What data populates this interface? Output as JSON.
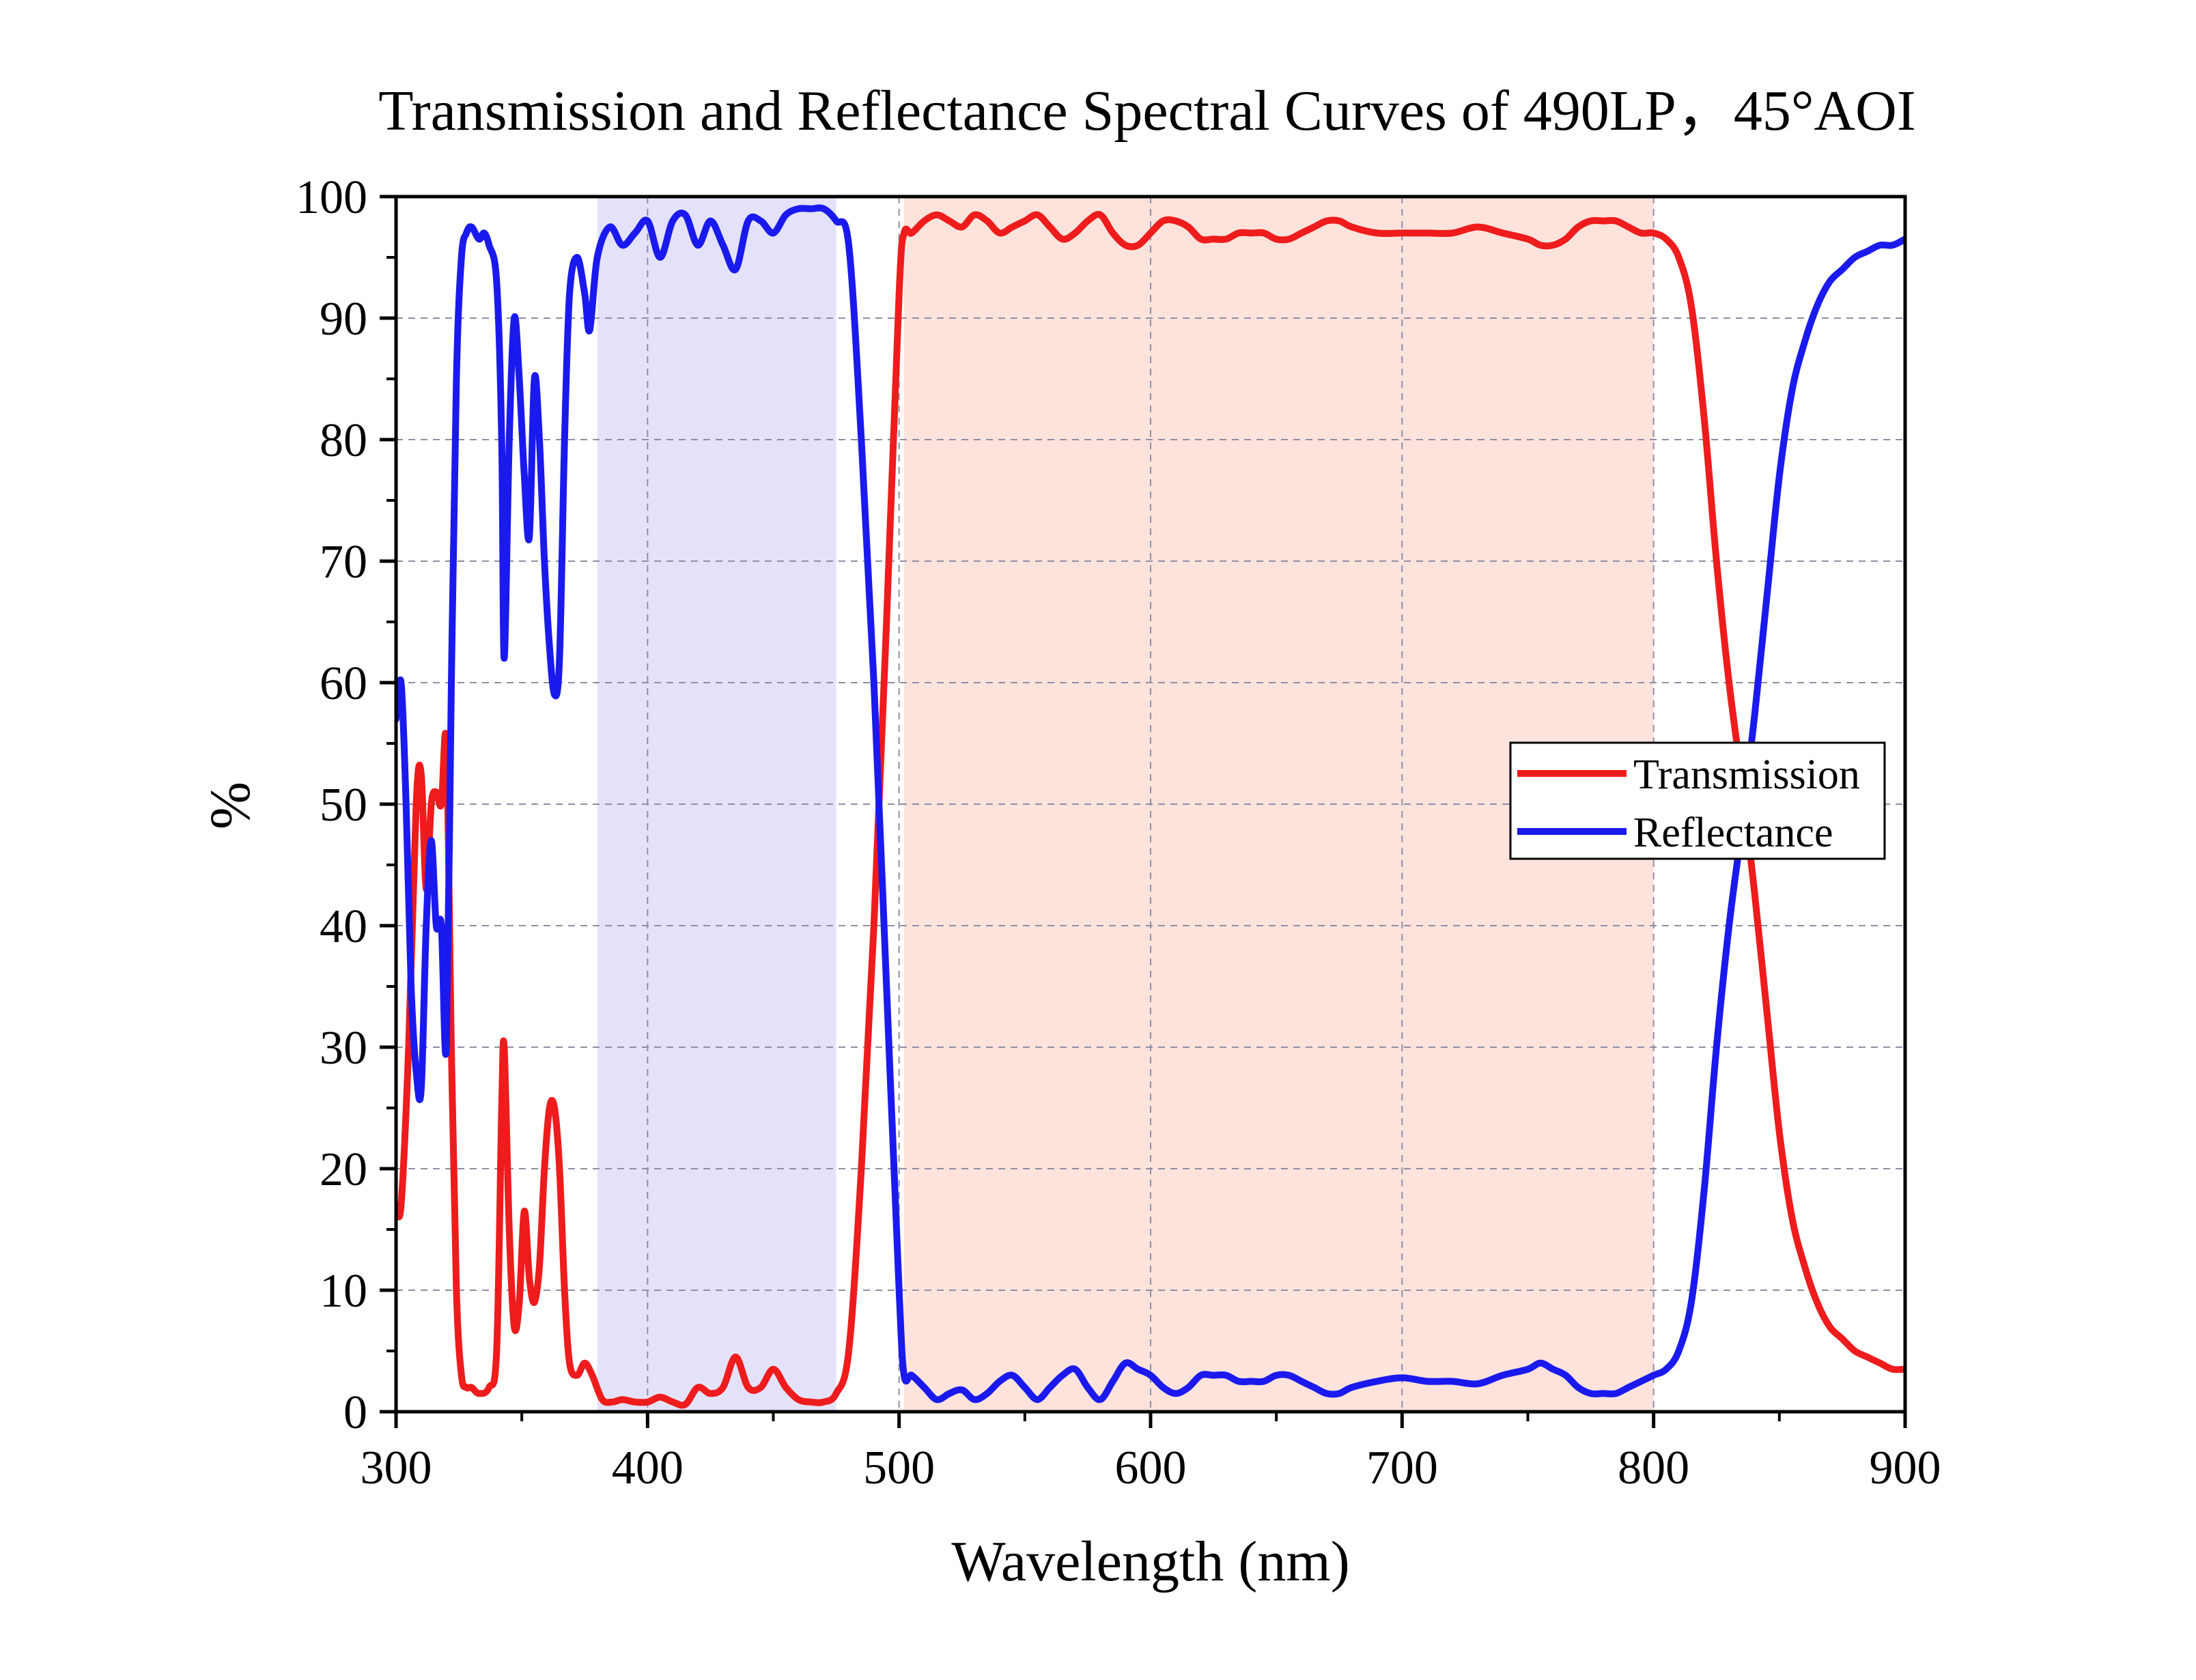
{
  "chart_data": {
    "type": "line",
    "title": "Transmission and Reflectance Spectral Curves of 490LP，45°AOI",
    "xlabel": "Wavelength (nm)",
    "ylabel": "%",
    "xlim": [
      300,
      900
    ],
    "ylim": [
      0,
      100
    ],
    "x_ticks": [
      "300",
      "400",
      "500",
      "600",
      "700",
      "800",
      "900"
    ],
    "y_ticks": [
      "0",
      "10",
      "20",
      "30",
      "40",
      "50",
      "60",
      "70",
      "80",
      "90",
      "100"
    ],
    "grid": true,
    "legend_position": "right",
    "shaded_regions": [
      {
        "x_range": [
          380,
          475
        ],
        "color": "#e4e2fb"
      },
      {
        "x_range": [
          502,
          800
        ],
        "color": "#fde3dc"
      }
    ],
    "series": [
      {
        "name": "Transmission",
        "color": "#ee1c1c",
        "points": [
          [
            300,
            17
          ],
          [
            302,
            17
          ],
          [
            305,
            30
          ],
          [
            308,
            50
          ],
          [
            310,
            52.5
          ],
          [
            312,
            43
          ],
          [
            314,
            50
          ],
          [
            316,
            51
          ],
          [
            318,
            50
          ],
          [
            320,
            55
          ],
          [
            322,
            30
          ],
          [
            324,
            10
          ],
          [
            326,
            3
          ],
          [
            328,
            2
          ],
          [
            330,
            2
          ],
          [
            333,
            1.5
          ],
          [
            337,
            2
          ],
          [
            340,
            5
          ],
          [
            342,
            25
          ],
          [
            343,
            30
          ],
          [
            345,
            15
          ],
          [
            347,
            7
          ],
          [
            349,
            9
          ],
          [
            351,
            16.5
          ],
          [
            353,
            11
          ],
          [
            355,
            9
          ],
          [
            357,
            12
          ],
          [
            359,
            20
          ],
          [
            361,
            25
          ],
          [
            363,
            25
          ],
          [
            365,
            20
          ],
          [
            367,
            10
          ],
          [
            369,
            4
          ],
          [
            372,
            3
          ],
          [
            375,
            4
          ],
          [
            378,
            3
          ],
          [
            382,
            1
          ],
          [
            386,
            0.8
          ],
          [
            390,
            1
          ],
          [
            395,
            0.8
          ],
          [
            400,
            0.8
          ],
          [
            405,
            1.2
          ],
          [
            410,
            0.8
          ],
          [
            415,
            0.6
          ],
          [
            420,
            2
          ],
          [
            425,
            1.5
          ],
          [
            430,
            2
          ],
          [
            435,
            4.5
          ],
          [
            440,
            2
          ],
          [
            445,
            2
          ],
          [
            450,
            3.5
          ],
          [
            455,
            2
          ],
          [
            460,
            1
          ],
          [
            465,
            0.8
          ],
          [
            470,
            0.8
          ],
          [
            475,
            1.5
          ],
          [
            480,
            5
          ],
          [
            485,
            20
          ],
          [
            490,
            40
          ],
          [
            495,
            65
          ],
          [
            500,
            92
          ],
          [
            502,
            97
          ],
          [
            505,
            97
          ],
          [
            510,
            98
          ],
          [
            515,
            98.5
          ],
          [
            520,
            98
          ],
          [
            525,
            97.5
          ],
          [
            530,
            98.5
          ],
          [
            535,
            98
          ],
          [
            540,
            97
          ],
          [
            545,
            97.5
          ],
          [
            550,
            98
          ],
          [
            555,
            98.5
          ],
          [
            560,
            97.5
          ],
          [
            565,
            96.5
          ],
          [
            570,
            97
          ],
          [
            575,
            98
          ],
          [
            580,
            98.5
          ],
          [
            585,
            97
          ],
          [
            590,
            96
          ],
          [
            595,
            96
          ],
          [
            600,
            97
          ],
          [
            605,
            98
          ],
          [
            610,
            98
          ],
          [
            615,
            97.5
          ],
          [
            620,
            96.5
          ],
          [
            625,
            96.5
          ],
          [
            630,
            96.5
          ],
          [
            635,
            97
          ],
          [
            640,
            97
          ],
          [
            645,
            97
          ],
          [
            650,
            96.5
          ],
          [
            655,
            96.5
          ],
          [
            660,
            97
          ],
          [
            665,
            97.5
          ],
          [
            670,
            98
          ],
          [
            675,
            98
          ],
          [
            680,
            97.5
          ],
          [
            690,
            97
          ],
          [
            700,
            97
          ],
          [
            710,
            97
          ],
          [
            720,
            97
          ],
          [
            730,
            97.5
          ],
          [
            740,
            97
          ],
          [
            750,
            96.5
          ],
          [
            755,
            96
          ],
          [
            760,
            96
          ],
          [
            765,
            96.5
          ],
          [
            770,
            97.5
          ],
          [
            775,
            98
          ],
          [
            780,
            98
          ],
          [
            785,
            98
          ],
          [
            790,
            97.5
          ],
          [
            795,
            97
          ],
          [
            800,
            97
          ],
          [
            805,
            96.5
          ],
          [
            810,
            95
          ],
          [
            815,
            91
          ],
          [
            820,
            82
          ],
          [
            825,
            70
          ],
          [
            830,
            60
          ],
          [
            835,
            52
          ],
          [
            840,
            43
          ],
          [
            845,
            33
          ],
          [
            850,
            23
          ],
          [
            855,
            16
          ],
          [
            860,
            12
          ],
          [
            865,
            9
          ],
          [
            870,
            7
          ],
          [
            875,
            6
          ],
          [
            880,
            5
          ],
          [
            885,
            4.5
          ],
          [
            890,
            4
          ],
          [
            895,
            3.5
          ],
          [
            900,
            3.5
          ]
        ]
      },
      {
        "name": "Reflectance",
        "color": "#1a1aee",
        "points": [
          [
            300,
            57
          ],
          [
            302,
            60
          ],
          [
            304,
            50
          ],
          [
            306,
            35
          ],
          [
            308,
            28
          ],
          [
            310,
            26.5
          ],
          [
            312,
            40
          ],
          [
            314,
            47
          ],
          [
            316,
            40
          ],
          [
            318,
            40
          ],
          [
            320,
            30
          ],
          [
            322,
            60
          ],
          [
            324,
            85
          ],
          [
            326,
            95
          ],
          [
            328,
            97
          ],
          [
            330,
            97.5
          ],
          [
            333,
            96.5
          ],
          [
            335,
            97
          ],
          [
            337,
            96
          ],
          [
            340,
            93
          ],
          [
            342,
            80
          ],
          [
            343,
            62
          ],
          [
            345,
            80
          ],
          [
            347,
            90
          ],
          [
            349,
            85
          ],
          [
            351,
            77
          ],
          [
            353,
            72
          ],
          [
            355,
            85
          ],
          [
            357,
            80
          ],
          [
            359,
            70
          ],
          [
            361,
            63
          ],
          [
            363,
            59
          ],
          [
            365,
            62
          ],
          [
            367,
            80
          ],
          [
            369,
            92
          ],
          [
            372,
            95
          ],
          [
            375,
            92
          ],
          [
            377,
            89
          ],
          [
            380,
            95
          ],
          [
            385,
            97.5
          ],
          [
            390,
            96
          ],
          [
            395,
            97
          ],
          [
            400,
            98
          ],
          [
            405,
            95
          ],
          [
            410,
            98
          ],
          [
            415,
            98.5
          ],
          [
            420,
            96
          ],
          [
            425,
            98
          ],
          [
            430,
            96
          ],
          [
            435,
            94
          ],
          [
            440,
            98
          ],
          [
            445,
            98
          ],
          [
            450,
            97
          ],
          [
            455,
            98.5
          ],
          [
            460,
            99
          ],
          [
            465,
            99
          ],
          [
            470,
            99
          ],
          [
            475,
            98
          ],
          [
            480,
            96
          ],
          [
            485,
            80
          ],
          [
            490,
            60
          ],
          [
            495,
            35
          ],
          [
            500,
            10
          ],
          [
            502,
            3
          ],
          [
            505,
            3
          ],
          [
            510,
            2
          ],
          [
            515,
            1
          ],
          [
            520,
            1.5
          ],
          [
            525,
            1.8
          ],
          [
            530,
            1
          ],
          [
            535,
            1.5
          ],
          [
            540,
            2.5
          ],
          [
            545,
            3
          ],
          [
            550,
            2
          ],
          [
            555,
            1
          ],
          [
            560,
            2
          ],
          [
            565,
            3
          ],
          [
            570,
            3.5
          ],
          [
            575,
            2
          ],
          [
            580,
            1
          ],
          [
            585,
            2.5
          ],
          [
            590,
            4
          ],
          [
            595,
            3.5
          ],
          [
            600,
            3
          ],
          [
            605,
            2
          ],
          [
            610,
            1.5
          ],
          [
            615,
            2
          ],
          [
            620,
            3
          ],
          [
            625,
            3
          ],
          [
            630,
            3
          ],
          [
            635,
            2.5
          ],
          [
            640,
            2.5
          ],
          [
            645,
            2.5
          ],
          [
            650,
            3
          ],
          [
            655,
            3
          ],
          [
            660,
            2.5
          ],
          [
            665,
            2
          ],
          [
            670,
            1.5
          ],
          [
            675,
            1.5
          ],
          [
            680,
            2
          ],
          [
            690,
            2.5
          ],
          [
            700,
            2.8
          ],
          [
            710,
            2.5
          ],
          [
            720,
            2.5
          ],
          [
            730,
            2.3
          ],
          [
            740,
            3
          ],
          [
            750,
            3.5
          ],
          [
            755,
            4
          ],
          [
            760,
            3.5
          ],
          [
            765,
            3
          ],
          [
            770,
            2
          ],
          [
            775,
            1.5
          ],
          [
            780,
            1.5
          ],
          [
            785,
            1.5
          ],
          [
            790,
            2
          ],
          [
            795,
            2.5
          ],
          [
            800,
            3
          ],
          [
            805,
            3.5
          ],
          [
            810,
            5
          ],
          [
            815,
            9
          ],
          [
            820,
            18
          ],
          [
            825,
            30
          ],
          [
            830,
            40
          ],
          [
            835,
            48
          ],
          [
            840,
            57
          ],
          [
            845,
            67
          ],
          [
            850,
            77
          ],
          [
            855,
            84
          ],
          [
            860,
            88
          ],
          [
            865,
            91
          ],
          [
            870,
            93
          ],
          [
            875,
            94
          ],
          [
            880,
            95
          ],
          [
            885,
            95.5
          ],
          [
            890,
            96
          ],
          [
            895,
            96
          ],
          [
            900,
            96.5
          ]
        ]
      }
    ]
  }
}
